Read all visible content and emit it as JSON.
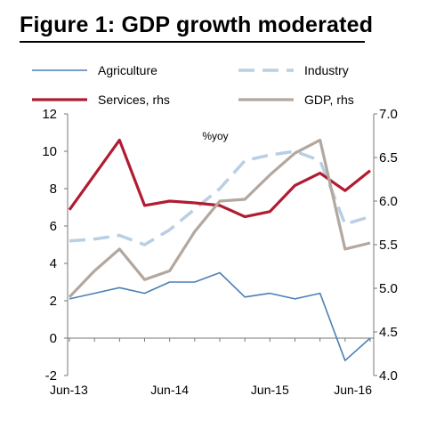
{
  "figure": {
    "title": "Figure 1: GDP growth moderated"
  },
  "chart_data": {
    "type": "line",
    "unit_label": "%yoy",
    "categories": [
      "Jun-13",
      "Sep-13",
      "Dec-13",
      "Mar-14",
      "Jun-14",
      "Sep-14",
      "Dec-14",
      "Mar-15",
      "Jun-15",
      "Sep-15",
      "Dec-15",
      "Mar-16",
      "Jun-16"
    ],
    "x_tick_labels": [
      "Jun-13",
      "Jun-14",
      "Jun-15",
      "Jun-16"
    ],
    "left_axis": {
      "ylim": [
        -2,
        12
      ],
      "ticks": [
        "12",
        "10",
        "8",
        "6",
        "4",
        "2",
        "0",
        "-2"
      ]
    },
    "right_axis": {
      "ylim": [
        4.0,
        7.0
      ],
      "ticks": [
        "7.0",
        "6.5",
        "6.0",
        "5.5",
        "5.0",
        "4.5",
        "4.0"
      ]
    },
    "legend_placement": "top",
    "grid": false,
    "series": [
      {
        "name": "Agriculture",
        "axis": "left",
        "color": "#4a7fb5",
        "style": "solid",
        "values": [
          2.1,
          2.4,
          2.7,
          2.4,
          3.0,
          3.0,
          3.5,
          2.2,
          2.4,
          2.1,
          2.4,
          -1.2,
          0.0
        ]
      },
      {
        "name": "Industry",
        "axis": "left",
        "color": "#b8cfe4",
        "style": "dashed",
        "values": [
          5.2,
          5.3,
          5.5,
          5.0,
          5.8,
          6.9,
          8.0,
          9.5,
          9.8,
          10.0,
          9.5,
          6.1,
          6.5
        ]
      },
      {
        "name": "Services, rhs",
        "axis": "right",
        "color": "#b01c32",
        "style": "solid",
        "values": [
          5.9,
          6.3,
          6.7,
          5.95,
          6.0,
          5.98,
          5.95,
          5.82,
          5.88,
          6.18,
          6.32,
          6.12,
          6.35
        ]
      },
      {
        "name": "GDP, rhs",
        "axis": "right",
        "color": "#b3a79e",
        "style": "solid",
        "values": [
          4.9,
          5.2,
          5.45,
          5.1,
          5.2,
          5.65,
          6.0,
          6.02,
          6.3,
          6.55,
          6.7,
          5.45,
          5.52
        ]
      }
    ]
  }
}
